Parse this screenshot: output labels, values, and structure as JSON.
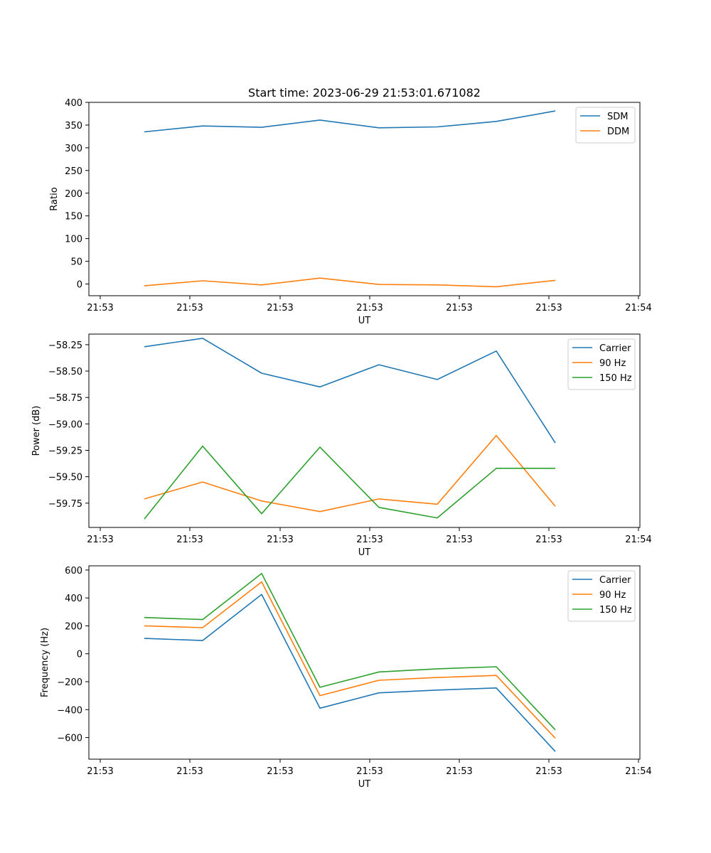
{
  "title": "Start time: 2023-06-29 21:53:01.671082",
  "chart_data": [
    {
      "type": "line",
      "xlabel": "UT",
      "ylabel": "Ratio",
      "x_tick_labels": [
        "21:53",
        "21:53",
        "21:53",
        "21:53",
        "21:53",
        "21:53",
        "21:54"
      ],
      "y_ticks": [
        0,
        50,
        100,
        150,
        200,
        250,
        300,
        350,
        400
      ],
      "y_tick_labels": [
        "0",
        "50",
        "100",
        "150",
        "200",
        "250",
        "300",
        "350",
        "400"
      ],
      "ylim": [
        -25.8,
        400
      ],
      "legend_position": "top-right",
      "grid": false,
      "series": [
        {
          "name": "SDM",
          "color": "#1f77b4",
          "values": [
            335,
            348,
            345,
            361,
            344,
            346,
            358,
            381
          ]
        },
        {
          "name": "DDM",
          "color": "#ff7f0e",
          "values": [
            -4,
            7,
            -2,
            13,
            -1,
            -2,
            -6,
            8
          ]
        }
      ]
    },
    {
      "type": "line",
      "xlabel": "UT",
      "ylabel": "Power (dB)",
      "x_tick_labels": [
        "21:53",
        "21:53",
        "21:53",
        "21:53",
        "21:53",
        "21:53",
        "21:54"
      ],
      "y_ticks": [
        -59.75,
        -59.5,
        -59.25,
        -59.0,
        -58.75,
        -58.5,
        -58.25
      ],
      "y_tick_labels": [
        "−59.75",
        "−59.50",
        "−59.25",
        "−59.00",
        "−58.75",
        "−58.50",
        "−58.25"
      ],
      "ylim": [
        -59.98,
        -58.15
      ],
      "legend_position": "top-right",
      "grid": false,
      "series": [
        {
          "name": "Carrier",
          "color": "#1f77b4",
          "values": [
            -58.27,
            -58.19,
            -58.52,
            -58.65,
            -58.44,
            -58.58,
            -58.31,
            -59.18
          ]
        },
        {
          "name": "90 Hz",
          "color": "#ff7f0e",
          "values": [
            -59.71,
            -59.55,
            -59.73,
            -59.83,
            -59.71,
            -59.76,
            -59.11,
            -59.78
          ]
        },
        {
          "name": "150 Hz",
          "color": "#2ca02c",
          "values": [
            -59.9,
            -59.21,
            -59.85,
            -59.22,
            -59.79,
            -59.89,
            -59.42,
            -59.42
          ]
        }
      ]
    },
    {
      "type": "line",
      "xlabel": "UT",
      "ylabel": "Frequency (Hz)",
      "x_tick_labels": [
        "21:53",
        "21:53",
        "21:53",
        "21:53",
        "21:53",
        "21:53",
        "21:54"
      ],
      "y_ticks": [
        -600,
        -400,
        -200,
        0,
        200,
        400,
        600
      ],
      "y_tick_labels": [
        "−600",
        "−400",
        "−200",
        "0",
        "200",
        "400",
        "600"
      ],
      "ylim": [
        -755,
        630
      ],
      "legend_position": "top-right",
      "grid": false,
      "series": [
        {
          "name": "Carrier",
          "color": "#1f77b4",
          "values": [
            110,
            95,
            425,
            -390,
            -280,
            -260,
            -245,
            -700
          ]
        },
        {
          "name": "90 Hz",
          "color": "#ff7f0e",
          "values": [
            200,
            187,
            515,
            -300,
            -190,
            -170,
            -155,
            -605
          ]
        },
        {
          "name": "150 Hz",
          "color": "#2ca02c",
          "values": [
            260,
            245,
            575,
            -240,
            -130,
            -108,
            -93,
            -545
          ]
        }
      ]
    }
  ]
}
